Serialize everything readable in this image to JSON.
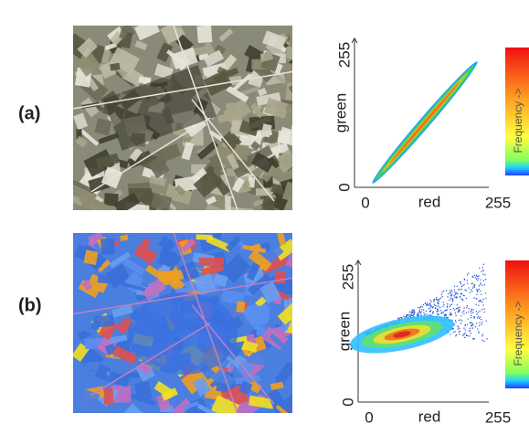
{
  "panels": [
    {
      "label": "(a)",
      "x_label": "red",
      "y_label": "green",
      "xticks": [
        0,
        255
      ],
      "yticks": [
        0,
        255
      ],
      "colorbar_label": "Frequency ->"
    },
    {
      "label": "(b)",
      "x_label": "red",
      "y_label": "green",
      "xticks": [
        0,
        255
      ],
      "yticks": [
        0,
        255
      ],
      "colorbar_label": "Frequency ->"
    }
  ]
}
